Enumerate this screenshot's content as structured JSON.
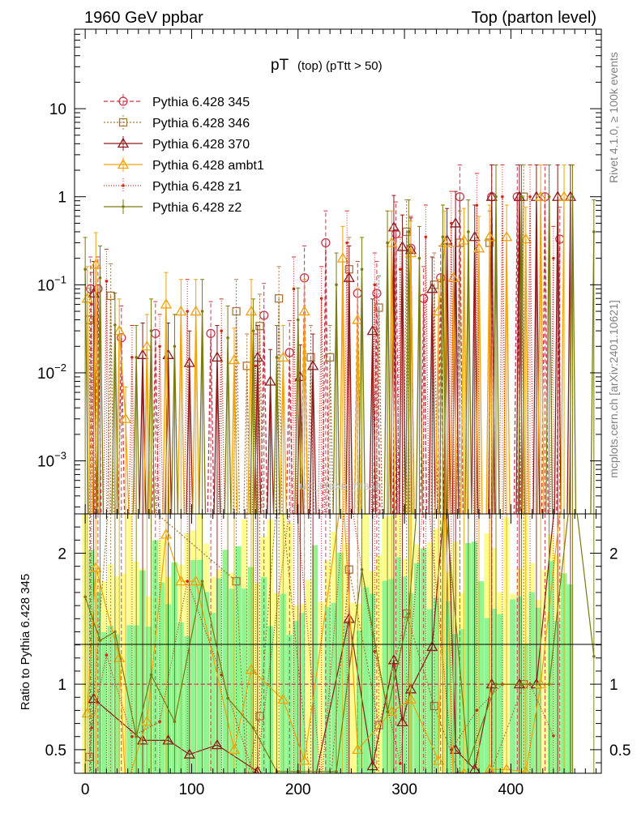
{
  "header": {
    "left": "1960 GeV ppbar",
    "right": "Top (parton level)"
  },
  "title": {
    "main": "pT",
    "sub": "(top) (pTtt > 50)"
  },
  "side_labels": {
    "rivet": "Rivet 4.1.0, ≥ 100k events",
    "mcplots": "mcplots.cern.ch [arXiv:2401.10621]",
    "watermark": "MC_TTBAR_TTBAR"
  },
  "chart_data": {
    "type": "line",
    "xlim": [
      -10,
      485
    ],
    "main": {
      "yscale": "log",
      "ylim": [
        0.00025,
        80
      ],
      "y_ticks": [
        {
          "value": 0.001,
          "base": "10",
          "exp": "−3"
        },
        {
          "value": 0.01,
          "base": "10",
          "exp": "−2"
        },
        {
          "value": 0.1,
          "base": "10",
          "exp": "−1"
        },
        {
          "value": 1,
          "label": "1"
        },
        {
          "value": 10,
          "label": "10"
        }
      ]
    },
    "ratio": {
      "ylabel": "Ratio to Pythia 6.428 345",
      "ylim": [
        0.32,
        2.3
      ],
      "y_ticks": [
        {
          "value": 0.5,
          "label": "0.5"
        },
        {
          "value": 1,
          "label": "1"
        },
        {
          "value": 2,
          "label": "2"
        }
      ]
    },
    "x_ticks": [
      {
        "value": 0,
        "label": "0"
      },
      {
        "value": 100,
        "label": "100"
      },
      {
        "value": 200,
        "label": "200"
      },
      {
        "value": 300,
        "label": "300"
      },
      {
        "value": 400,
        "label": "400"
      }
    ],
    "series": [
      {
        "name": "Pythia 6.428 345",
        "color": "#c8364b",
        "dash": "5,3",
        "marker": "circle",
        "x": [
          5,
          12,
          34,
          66,
          118,
          168,
          192,
          206,
          226,
          256,
          274,
          292,
          306,
          318,
          334,
          352,
          382,
          406,
          432,
          446
        ],
        "y": [
          0.09,
          0.09,
          0.025,
          0.028,
          0.028,
          0.045,
          0.017,
          0.12,
          0.3,
          0.08,
          0.08,
          0.38,
          0.26,
          0.07,
          0.12,
          1.0,
          1.0,
          1.0,
          1.0,
          0.33
        ]
      },
      {
        "name": "Pythia 6.428 346",
        "color": "#a8763b",
        "dash": "2,2",
        "marker": "square",
        "x": [
          4,
          24,
          142,
          152,
          164,
          182,
          212,
          230,
          248,
          276,
          302,
          328,
          352,
          380,
          412
        ],
        "y": [
          0.04,
          0.075,
          0.05,
          0.012,
          0.034,
          0.07,
          0.015,
          0.015,
          0.15,
          0.055,
          0.4,
          0.1,
          0.3,
          0.3,
          1.0
        ]
      },
      {
        "name": "Pythia 6.428 370",
        "color": "#8b1a1a",
        "dash": "",
        "marker": "triangle",
        "x": [
          8,
          54,
          78,
          98,
          124,
          162,
          174,
          202,
          214,
          248,
          270,
          290,
          298,
          306,
          326,
          340,
          348,
          366,
          382,
          408,
          424,
          444,
          456
        ],
        "y": [
          0.08,
          0.016,
          0.016,
          0.013,
          0.015,
          0.015,
          0.008,
          0.009,
          0.012,
          0.12,
          0.03,
          0.45,
          0.27,
          0.25,
          0.09,
          0.32,
          0.5,
          0.35,
          1.0,
          1.0,
          1.0,
          1.0,
          1.0
        ]
      },
      {
        "name": "Pythia 6.428 ambt1",
        "color": "#f0a30a",
        "dash": "",
        "marker": "triangle",
        "x": [
          2,
          10,
          32,
          38,
          58,
          76,
          90,
          104,
          140,
          156,
          186,
          206,
          242,
          256,
          288,
          306,
          332,
          338,
          346,
          356,
          370,
          380,
          396,
          414,
          428,
          450
        ],
        "y": [
          0.07,
          0.17,
          0.03,
          0.003,
          0.02,
          0.06,
          0.05,
          0.05,
          0.014,
          0.05,
          0.015,
          0.05,
          0.2,
          0.04,
          0.3,
          0.23,
          0.05,
          0.3,
          0.12,
          0.32,
          0.26,
          0.35,
          0.35,
          0.33,
          1.0,
          1.0
        ]
      },
      {
        "name": "Pythia 6.428 z1",
        "color": "#d0271b",
        "dash": "1,2",
        "marker": "dot",
        "x": [
          6,
          20,
          44,
          70,
          96,
          128,
          160,
          196,
          222,
          246,
          272,
          296,
          320,
          344,
          368,
          392,
          418,
          440
        ],
        "y": [
          0.06,
          0.11,
          0.015,
          0.02,
          0.05,
          0.03,
          0.012,
          0.09,
          0.07,
          0.3,
          0.1,
          0.15,
          0.35,
          0.5,
          0.8,
          1.0,
          1.0,
          0.2
        ]
      },
      {
        "name": "Pythia 6.428 z2",
        "color": "#7a7a10",
        "dash": "",
        "marker": "dot",
        "x": [
          0,
          14,
          28,
          48,
          62,
          84,
          110,
          134,
          158,
          180,
          200,
          236,
          260,
          284,
          304,
          314,
          336,
          360,
          386,
          410,
          436,
          458,
          478
        ],
        "y": [
          0.15,
          0.12,
          0.035,
          0.015,
          0.03,
          0.02,
          0.05,
          0.025,
          0.03,
          0.015,
          0.04,
          0.1,
          0.15,
          0.3,
          0.4,
          0.2,
          0.35,
          0.4,
          1.0,
          1.0,
          1.0,
          1.0,
          0.4
        ]
      }
    ]
  }
}
